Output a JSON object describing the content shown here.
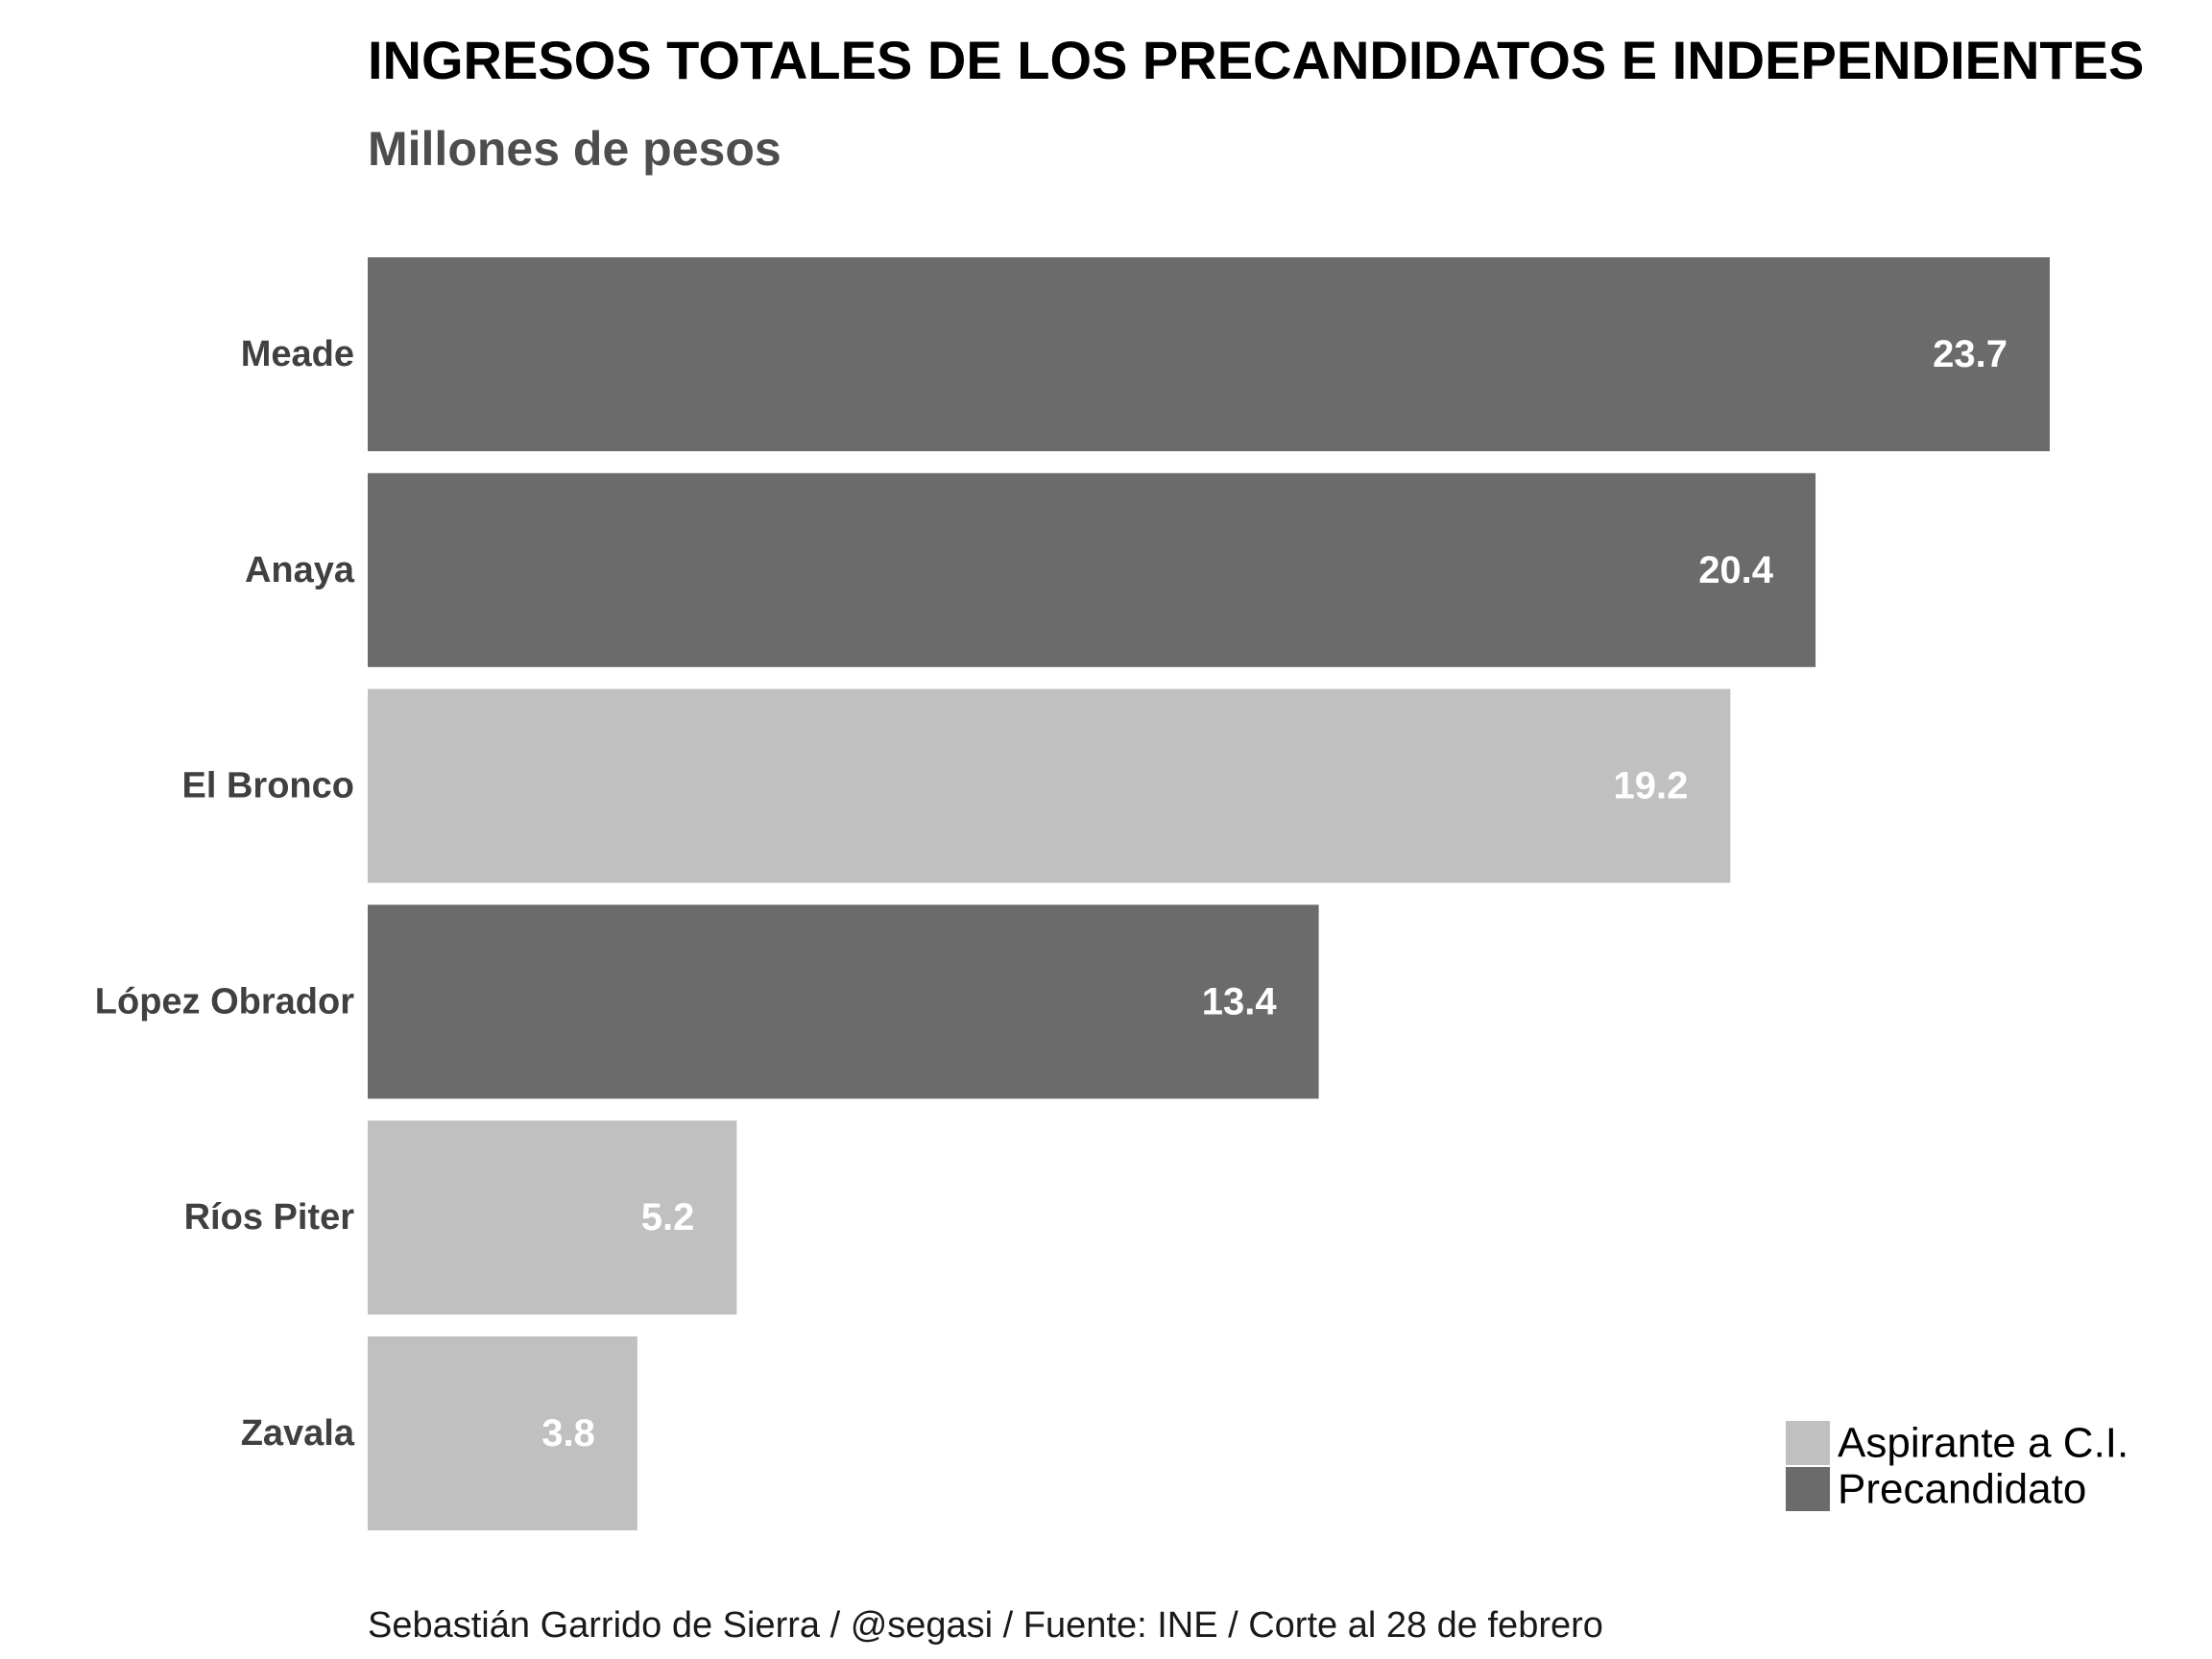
{
  "chart_data": {
    "type": "bar",
    "orientation": "horizontal",
    "title": "INGRESOS TOTALES DE LOS PRECANDIDATOS E INDEPENDIENTES",
    "subtitle": "Millones de pesos",
    "caption": "Sebastián Garrido de Sierra / @segasi / Fuente: INE / Corte al 28 de febrero",
    "categories": [
      "Meade",
      "Anaya",
      "El Bronco",
      "López Obrador",
      "Ríos Piter",
      "Zavala"
    ],
    "values": [
      23.7,
      20.4,
      19.2,
      13.4,
      5.2,
      3.8
    ],
    "value_labels": [
      "23.7",
      "20.4",
      "19.2",
      "13.4",
      "5.2",
      "3.8"
    ],
    "groups": [
      "Precandidato",
      "Precandidato",
      "Aspirante a C.I.",
      "Precandidato",
      "Aspirante a C.I.",
      "Aspirante a C.I."
    ],
    "legend": [
      {
        "name": "Aspirante a C.I.",
        "color": "#c0c0c0"
      },
      {
        "name": "Precandidato",
        "color": "#6b6b6b"
      }
    ],
    "legend_position": "bottom-right",
    "xlim": [
      0,
      23.7
    ],
    "grid": false,
    "axis_ticks": false
  }
}
